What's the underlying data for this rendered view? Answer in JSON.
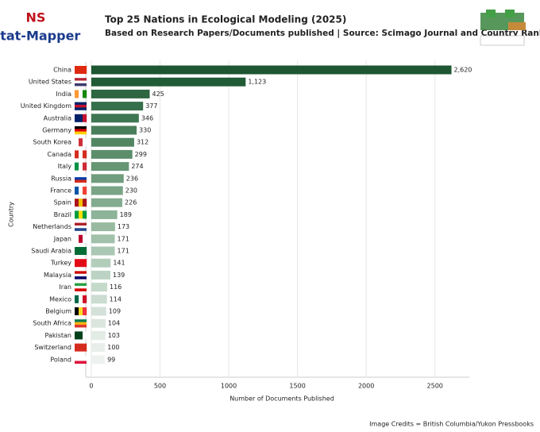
{
  "logo": {
    "line1": "NS",
    "line2": "Stat-Mapper"
  },
  "credits": "Image Credits = British Columbia/Yukon Pressbooks",
  "chart_data": {
    "type": "hbar",
    "title": "Top 25 Nations in Ecological Modeling (2025)",
    "subtitle": "Based on Research Papers/Documents published | Source: Scimago Journal and Country Rank",
    "x_label": "Number of Documents Published",
    "y_label": "Country",
    "categories": [
      "China",
      "United States",
      "India",
      "United Kingdom",
      "Australia",
      "Germany",
      "South Korea",
      "Canada",
      "Italy",
      "Russia",
      "France",
      "Spain",
      "Brazil",
      "Netherlands",
      "Japan",
      "Saudi Arabia",
      "Turkey",
      "Malaysia",
      "Iran",
      "Mexico",
      "Belgium",
      "South Africa",
      "Pakistan",
      "Switzerland",
      "Poland"
    ],
    "values": [
      2620,
      1123,
      425,
      377,
      346,
      330,
      312,
      299,
      274,
      236,
      230,
      226,
      189,
      173,
      171,
      171,
      141,
      139,
      116,
      114,
      109,
      104,
      103,
      100,
      99
    ],
    "value_labels": [
      "2,620",
      "1,123",
      "425",
      "377",
      "346",
      "330",
      "312",
      "299",
      "274",
      "236",
      "230",
      "226",
      "189",
      "173",
      "171",
      "171",
      "141",
      "139",
      "116",
      "114",
      "109",
      "104",
      "103",
      "100",
      "99"
    ],
    "colors": [
      "#1d5631",
      "#215b36",
      "#2d6640",
      "#36704a",
      "#3f7752",
      "#487e5a",
      "#528663",
      "#5c8e6c",
      "#669674",
      "#709d7d",
      "#79a486",
      "#83ab8f",
      "#8db398",
      "#97baa1",
      "#a1c1aa",
      "#aac7b3",
      "#b3cdbb",
      "#bcd3c3",
      "#c5d9cb",
      "#ccdcd1",
      "#d4e1d8",
      "#dbe6de",
      "#e2ebe4",
      "#e8efea",
      "#eef2ef"
    ],
    "xlim": [
      -40,
      2750
    ],
    "xticks": [
      0,
      500,
      1000,
      1500,
      2000,
      2500
    ],
    "grid": true
  }
}
